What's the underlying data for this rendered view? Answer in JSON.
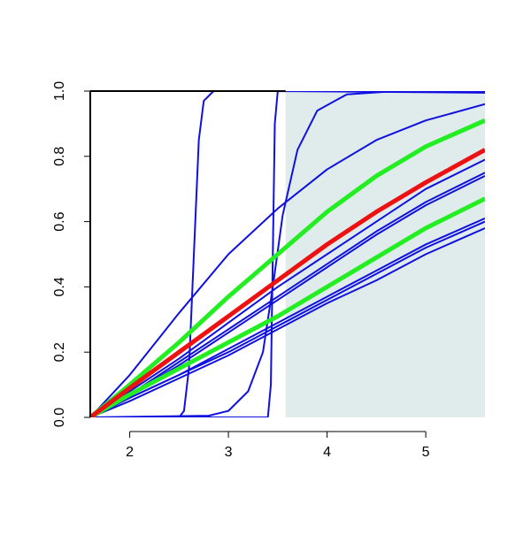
{
  "chart_data": {
    "type": "line",
    "xlim": [
      1.6,
      5.6
    ],
    "ylim": [
      0,
      1
    ],
    "xticks": [
      2,
      3,
      4,
      5
    ],
    "yticks": [
      {
        "value": 0,
        "label": "0.0"
      },
      {
        "value": 0.2,
        "label": "0.2"
      },
      {
        "value": 0.4,
        "label": "0.4"
      },
      {
        "value": 0.6,
        "label": "0.6"
      },
      {
        "value": 0.8,
        "label": "0.8"
      },
      {
        "value": 1,
        "label": "1.0"
      }
    ],
    "grid": false,
    "shaded_region": {
      "xlim": [
        3.58,
        5.6
      ],
      "color": "#e0ecec"
    },
    "series": [
      {
        "color": "#1010e0",
        "line_width": 2,
        "x": [
          1.6,
          2,
          2.5,
          3,
          3.5,
          4,
          4.5,
          5,
          5.6
        ],
        "values": [
          0,
          0.13,
          0.32,
          0.5,
          0.64,
          0.76,
          0.85,
          0.91,
          0.96
        ]
      },
      {
        "color": "#1010e0",
        "line_width": 2,
        "x": [
          1.6,
          2.5,
          2.55,
          2.6,
          2.65,
          2.7,
          2.75,
          2.85,
          5.6
        ],
        "values": [
          0,
          0,
          0.02,
          0.15,
          0.5,
          0.85,
          0.97,
          1,
          1
        ]
      },
      {
        "color": "#1010e0",
        "line_width": 2,
        "x": [
          1.6,
          3.4,
          3.43,
          3.45,
          3.47,
          3.5,
          5.6
        ],
        "values": [
          0,
          0,
          0.1,
          0.5,
          0.9,
          1,
          0.995
        ]
      },
      {
        "color": "#1010e0",
        "line_width": 2,
        "x": [
          1.6,
          2.8,
          3.0,
          3.2,
          3.35,
          3.45,
          3.55,
          3.7,
          3.9,
          4.2,
          4.6,
          5.6
        ],
        "values": [
          0,
          0.005,
          0.02,
          0.08,
          0.2,
          0.4,
          0.62,
          0.82,
          0.94,
          0.99,
          0.998,
          1
        ]
      },
      {
        "color": "#1010e0",
        "line_width": 2,
        "x": [
          1.6,
          2,
          2.5,
          3,
          3.5,
          4,
          4.5,
          5,
          5.6
        ],
        "values": [
          0,
          0.08,
          0.18,
          0.29,
          0.4,
          0.5,
          0.6,
          0.7,
          0.79
        ]
      },
      {
        "color": "#1010e0",
        "line_width": 2,
        "x": [
          1.6,
          2,
          2.5,
          3,
          3.5,
          4,
          4.5,
          5,
          5.6
        ],
        "values": [
          0,
          0.07,
          0.17,
          0.27,
          0.37,
          0.47,
          0.57,
          0.66,
          0.75
        ]
      },
      {
        "color": "#1010e0",
        "line_width": 2,
        "x": [
          1.6,
          2,
          2.5,
          3,
          3.5,
          4,
          4.5,
          5,
          5.6
        ],
        "values": [
          0,
          0.07,
          0.16,
          0.26,
          0.36,
          0.46,
          0.56,
          0.65,
          0.74
        ]
      },
      {
        "color": "#1010e0",
        "line_width": 2,
        "x": [
          1.6,
          2,
          2.5,
          3,
          3.5,
          4,
          4.5,
          5,
          5.6
        ],
        "values": [
          0,
          0.06,
          0.13,
          0.21,
          0.29,
          0.37,
          0.45,
          0.53,
          0.61
        ]
      },
      {
        "color": "#1010e0",
        "line_width": 2,
        "x": [
          1.6,
          2,
          2.5,
          3,
          3.5,
          4,
          4.5,
          5,
          5.6
        ],
        "values": [
          0,
          0.06,
          0.13,
          0.2,
          0.28,
          0.36,
          0.44,
          0.52,
          0.6
        ]
      },
      {
        "color": "#1010e0",
        "line_width": 2,
        "x": [
          1.6,
          2,
          2.5,
          3,
          3.5,
          4,
          4.5,
          5,
          5.6
        ],
        "values": [
          0,
          0.05,
          0.12,
          0.19,
          0.27,
          0.35,
          0.42,
          0.5,
          0.58
        ]
      },
      {
        "color": "#22ee22",
        "line_width": 5,
        "x": [
          1.6,
          2,
          2.5,
          3,
          3.5,
          4,
          4.5,
          5,
          5.6
        ],
        "values": [
          0,
          0.07,
          0.15,
          0.23,
          0.31,
          0.4,
          0.49,
          0.58,
          0.67
        ]
      },
      {
        "color": "#22ee22",
        "line_width": 5,
        "x": [
          1.6,
          2,
          2.5,
          3,
          3.5,
          4,
          4.5,
          5,
          5.6
        ],
        "values": [
          0,
          0.1,
          0.23,
          0.37,
          0.5,
          0.63,
          0.74,
          0.83,
          0.91
        ]
      },
      {
        "color": "#ee1111",
        "line_width": 5,
        "x": [
          1.6,
          2,
          2.5,
          3,
          3.5,
          4,
          4.5,
          5,
          5.6
        ],
        "values": [
          0,
          0.09,
          0.2,
          0.31,
          0.42,
          0.53,
          0.63,
          0.72,
          0.82
        ]
      }
    ]
  }
}
